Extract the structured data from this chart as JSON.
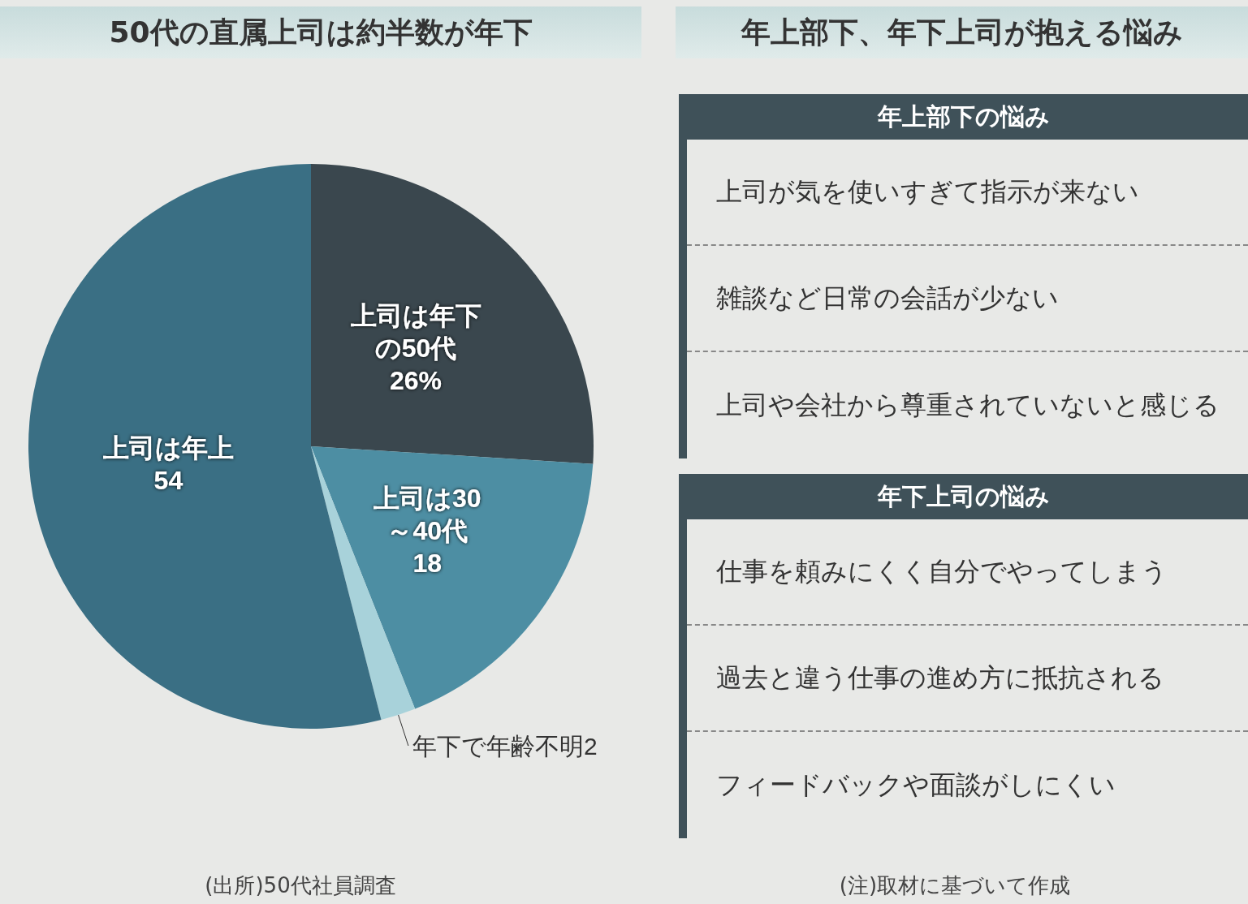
{
  "chart_data": [
    {
      "type": "pie",
      "title": "50代の直属上司は約半数が年下",
      "categories": [
        "上司は年下の50代",
        "上司は30～40代",
        "年下で年齢不明",
        "上司は年上"
      ],
      "values": [
        26,
        18,
        2,
        54
      ],
      "value_labels": [
        "26%",
        "18",
        "2",
        "54"
      ],
      "colors": [
        "#3a474e",
        "#4d8ea3",
        "#a8d2da",
        "#3a6f84"
      ],
      "annotations": [
        "(出所)50代社員調査"
      ]
    },
    {
      "type": "other",
      "title": "年上部下、年下上司が抱える悩み",
      "annotations": [
        "(注)取材に基づいて作成"
      ]
    },
    {
      "type": "other",
      "title": "年上部下の悩み",
      "annotations": [
        "上司が気を使いすぎて指示が来ない",
        "雑談など日常の会話が少ない",
        "上司や会社から尊重されていないと感じる"
      ]
    },
    {
      "type": "other",
      "title": "年下上司の悩み",
      "annotations": [
        "仕事を頼みにくく自分でやってしまう",
        "過去と違う仕事の進め方に抵抗される",
        "フィードバックや面談がしにくい"
      ]
    }
  ]
}
